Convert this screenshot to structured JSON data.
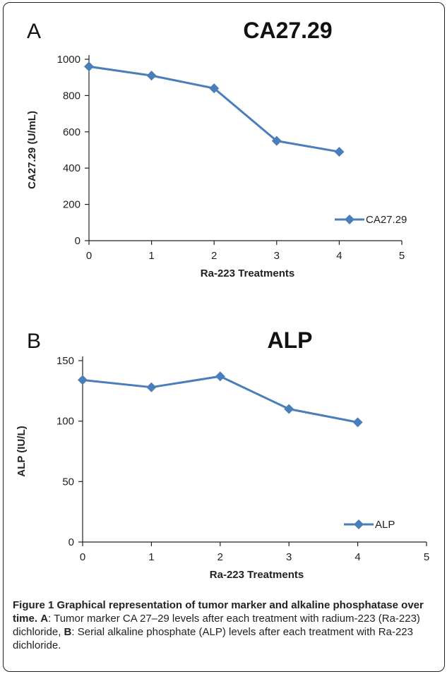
{
  "chart_data": [
    {
      "type": "line",
      "panel_label": "A",
      "title": "CA27.29",
      "xlabel": "Ra-223 Treatments",
      "ylabel": "CA27.29 (U/mL)",
      "x": [
        0,
        1,
        2,
        3,
        4
      ],
      "series": [
        {
          "name": "CA27.29",
          "values": [
            960,
            910,
            840,
            550,
            490
          ]
        }
      ],
      "xlim": [
        0,
        5
      ],
      "ylim": [
        0,
        1000
      ],
      "xticks": [
        "0",
        "1",
        "2",
        "3",
        "4",
        "5"
      ],
      "yticks": [
        "0",
        "200",
        "400",
        "600",
        "800",
        "1000"
      ],
      "legend": "bottom-right",
      "grid": false,
      "color": "#4a7ebb"
    },
    {
      "type": "line",
      "panel_label": "B",
      "title": "ALP",
      "xlabel": "Ra-223 Treatments",
      "ylabel": "ALP (IU/L)",
      "x": [
        0,
        1,
        2,
        3,
        4
      ],
      "series": [
        {
          "name": "ALP",
          "values": [
            134,
            128,
            137,
            110,
            99
          ]
        }
      ],
      "xlim": [
        0,
        5
      ],
      "ylim": [
        0,
        150
      ],
      "xticks": [
        "0",
        "1",
        "2",
        "3",
        "4",
        "5"
      ],
      "yticks": [
        "0",
        "50",
        "100",
        "150"
      ],
      "legend": "bottom-right",
      "grid": false,
      "color": "#4a7ebb"
    }
  ],
  "caption": {
    "lead": "Figure 1 Graphical representation of tumor marker and alkaline phosphatase over time.",
    "label_a": "A",
    "text_a": ": Tumor marker CA 27–29 levels after each treatment with radium-223 (Ra-223) dichloride, ",
    "label_b": "B",
    "text_b": ": Serial alkaline phosphate (ALP) levels after each treatment with Ra-223 dichloride."
  }
}
